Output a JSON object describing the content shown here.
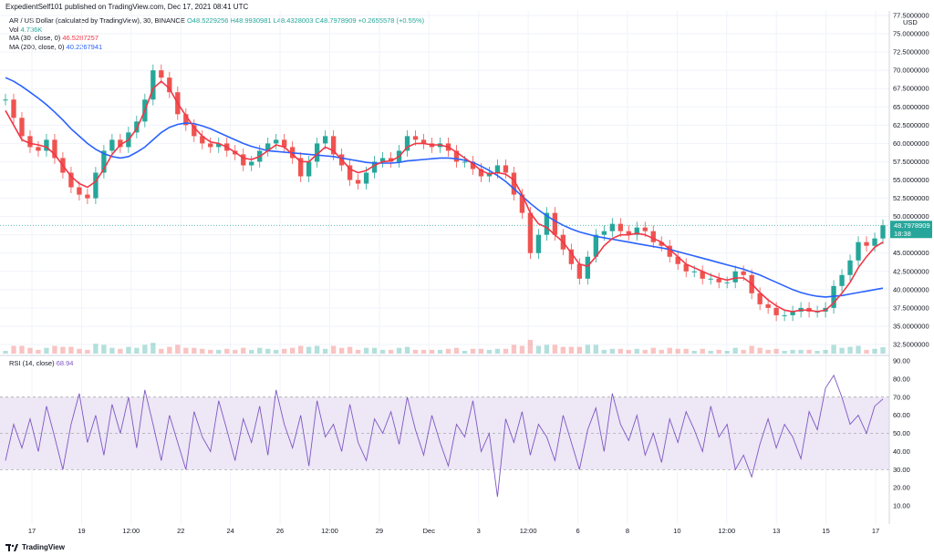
{
  "header": {
    "text": "ExpedientSelf101 published on TradingView.com, Dec 17, 2021 08:41 UTC"
  },
  "legend": {
    "symbol_line": "AR / US Dollar (calculated by TradingView), 30, BINANCE",
    "ohlc": "O48.5229256 H48.9930981 L48.4328003 C48.7978909 +0.2655578 (+0.55%)",
    "vol_label": "Vol",
    "vol_value": "4.736K",
    "ma30_label": "MA (30, close, 0)",
    "ma30_value": "46.5287257",
    "ma200_label": "MA (200, close, 0)",
    "ma200_value": "40.2267941",
    "rsi_label": "RSI (14, close)",
    "rsi_value": "68.94"
  },
  "price_axis": {
    "unit": "USD",
    "ticks": [
      "77.5000000",
      "75.0000000",
      "72.5000000",
      "70.0000000",
      "67.5000000",
      "65.0000000",
      "62.5000000",
      "60.0000000",
      "57.5000000",
      "55.0000000",
      "52.5000000",
      "50.0000000",
      "47.5000000",
      "45.0000000",
      "42.5000000",
      "40.0000000",
      "37.5000000",
      "35.0000000",
      "32.5000000"
    ],
    "last_price": "48.7978909",
    "countdown": "18:38"
  },
  "rsi_axis": {
    "ticks": [
      "90.00",
      "80.00",
      "70.00",
      "60.00",
      "50.00",
      "40.00",
      "30.00",
      "20.00",
      "10.00"
    ]
  },
  "x_axis": {
    "ticks": [
      "17",
      "19",
      "12:00",
      "22",
      "24",
      "26",
      "12:00",
      "29",
      "Dec",
      "3",
      "12:00",
      "6",
      "8",
      "10",
      "12:00",
      "13",
      "15",
      "17"
    ]
  },
  "colors": {
    "up": "#26a69a",
    "down": "#ef5350",
    "ma30": "#f23645",
    "ma200": "#2962ff",
    "rsi": "#7e57c2",
    "rsi_band": "#ede7f6"
  },
  "chart_data": {
    "type": "line",
    "title": "AR / US Dollar (calculated by TradingView), 30, BINANCE",
    "ylim": [
      32.5,
      77.5
    ],
    "x_ticks": [
      "17",
      "19",
      "12:00",
      "22",
      "24",
      "26",
      "12:00",
      "29",
      "Dec",
      "3",
      "12:00",
      "6",
      "8",
      "10",
      "12:00",
      "13",
      "15",
      "17"
    ],
    "series": [
      {
        "name": "AR / US Dollar",
        "values": [
          66.0,
          63.5,
          61.0,
          59.5,
          59.0,
          60.5,
          58.0,
          56.0,
          54.0,
          53.0,
          52.5,
          56.0,
          59.0,
          60.5,
          59.5,
          61.5,
          63.0,
          66.0,
          70.0,
          69.0,
          67.0,
          64.0,
          62.5,
          61.0,
          60.0,
          59.5,
          60.0,
          59.0,
          58.5,
          57.0,
          57.5,
          59.0,
          60.0,
          60.5,
          59.5,
          58.0,
          55.5,
          57.5,
          60.0,
          61.0,
          58.5,
          57.0,
          55.0,
          54.5,
          56.0,
          57.5,
          58.0,
          57.5,
          59.0,
          61.0,
          60.5,
          60.0,
          59.5,
          60.0,
          59.0,
          57.5,
          57.5,
          56.5,
          55.5,
          56.0,
          57.0,
          56.0,
          53.0,
          50.5,
          45.0,
          47.5,
          50.5,
          47.5,
          45.5,
          43.5,
          41.5,
          44.5,
          47.5,
          48.0,
          49.0,
          48.0,
          47.5,
          48.5,
          48.0,
          46.5,
          46.0,
          44.5,
          43.5,
          42.5,
          42.5,
          41.5,
          41.5,
          41.0,
          41.0,
          42.5,
          42.0,
          39.5,
          38.0,
          37.5,
          36.5,
          36.5,
          37.0,
          37.5,
          37.0,
          37.0,
          37.5,
          40.5,
          42.0,
          44.0,
          46.5,
          46.0,
          47.0,
          48.8
        ]
      },
      {
        "name": "MA (30, close, 0)",
        "values": [
          64.5,
          62.5,
          60.5,
          60.0,
          59.8,
          59.5,
          58.5,
          57.0,
          55.5,
          54.5,
          54.0,
          54.8,
          56.5,
          58.5,
          59.8,
          60.5,
          62.0,
          64.5,
          67.5,
          68.5,
          67.5,
          65.5,
          63.8,
          62.2,
          61.0,
          60.2,
          60.0,
          59.5,
          58.8,
          58.0,
          57.8,
          58.2,
          59.0,
          59.8,
          59.5,
          58.5,
          57.5,
          57.5,
          58.5,
          59.5,
          59.0,
          57.8,
          56.5,
          56.0,
          56.3,
          57.0,
          57.5,
          57.6,
          58.2,
          59.5,
          60.0,
          60.0,
          59.8,
          59.8,
          59.5,
          58.8,
          58.0,
          57.2,
          56.3,
          55.8,
          56.0,
          55.8,
          55.0,
          53.0,
          50.5,
          49.0,
          48.5,
          47.5,
          46.5,
          45.0,
          43.5,
          43.2,
          44.5,
          46.0,
          47.0,
          47.5,
          47.5,
          47.7,
          47.5,
          47.0,
          46.5,
          45.5,
          44.5,
          43.5,
          43.0,
          42.5,
          42.0,
          41.6,
          41.3,
          41.6,
          41.6,
          40.8,
          39.6,
          38.6,
          37.8,
          37.2,
          37.0,
          37.2,
          37.2,
          37.0,
          37.2,
          38.2,
          39.5,
          41.0,
          43.0,
          44.5,
          45.8,
          46.5
        ]
      },
      {
        "name": "MA (200, close, 0)",
        "values": [
          69.0,
          68.5,
          67.8,
          67.0,
          66.2,
          65.3,
          64.3,
          63.2,
          62.0,
          61.0,
          60.0,
          59.2,
          58.6,
          58.2,
          58.0,
          58.2,
          58.8,
          59.5,
          60.5,
          61.5,
          62.2,
          62.6,
          62.8,
          62.7,
          62.4,
          62.0,
          61.5,
          61.0,
          60.5,
          60.0,
          59.6,
          59.3,
          59.0,
          58.9,
          58.8,
          58.7,
          58.6,
          58.5,
          58.4,
          58.3,
          58.2,
          58.0,
          57.8,
          57.6,
          57.4,
          57.3,
          57.3,
          57.3,
          57.4,
          57.6,
          57.7,
          57.8,
          57.9,
          58.0,
          58.0,
          57.9,
          57.7,
          57.4,
          56.9,
          56.3,
          55.6,
          54.8,
          53.8,
          52.8,
          51.8,
          50.9,
          50.1,
          49.4,
          48.8,
          48.3,
          47.9,
          47.6,
          47.3,
          47.1,
          46.9,
          46.7,
          46.5,
          46.3,
          46.1,
          45.9,
          45.7,
          45.5,
          45.2,
          44.9,
          44.6,
          44.3,
          44.0,
          43.7,
          43.4,
          43.1,
          42.8,
          42.4,
          42.0,
          41.5,
          41.0,
          40.5,
          40.0,
          39.6,
          39.3,
          39.1,
          39.0,
          39.1,
          39.2,
          39.4,
          39.6,
          39.8,
          40.0,
          40.2
        ]
      },
      {
        "name": "RSI (14, close)",
        "values": [
          35,
          55,
          42,
          58,
          40,
          65,
          48,
          30,
          55,
          72,
          45,
          60,
          38,
          66,
          50,
          70,
          42,
          74,
          55,
          35,
          60,
          45,
          30,
          62,
          48,
          40,
          68,
          52,
          35,
          58,
          45,
          65,
          38,
          74,
          55,
          42,
          60,
          32,
          68,
          48,
          55,
          40,
          66,
          45,
          35,
          58,
          50,
          62,
          44,
          70,
          52,
          38,
          60,
          45,
          32,
          55,
          48,
          68,
          40,
          50,
          15,
          58,
          45,
          62,
          38,
          55,
          48,
          35,
          60,
          45,
          30,
          52,
          64,
          40,
          72,
          55,
          46,
          60,
          38,
          50,
          34,
          58,
          45,
          62,
          52,
          40,
          65,
          48,
          55,
          30,
          38,
          26,
          44,
          58,
          42,
          55,
          48,
          36,
          62,
          52,
          75,
          82,
          70,
          55,
          60,
          50,
          65,
          69
        ]
      }
    ],
    "rsi_ylim": [
      0,
      92
    ],
    "rsi_bands": [
      30,
      70
    ]
  }
}
